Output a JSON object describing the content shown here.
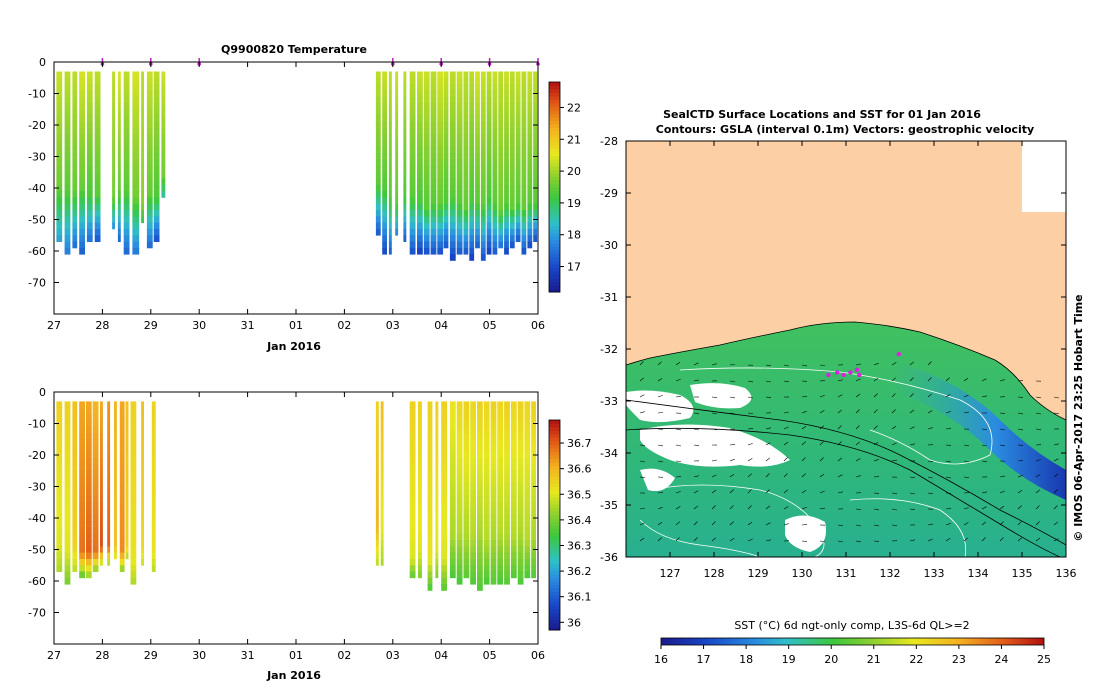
{
  "chart_data": [
    {
      "type": "heatmap",
      "title": "Q9900820  Temperature",
      "xlabel": "Jan 2016",
      "x_tick_labels": [
        "27",
        "28",
        "29",
        "30",
        "31",
        "01",
        "02",
        "03",
        "04",
        "05",
        "06"
      ],
      "x_range_days": [
        0,
        10
      ],
      "y_tick_labels": [
        "0",
        "-10",
        "-20",
        "-30",
        "-40",
        "-50",
        "-60",
        "-70"
      ],
      "ylim": [
        -80,
        0
      ],
      "colorbar_ticks": [
        "17",
        "18",
        "19",
        "20",
        "21",
        "22"
      ],
      "colorbar_range": [
        16.2,
        22.8
      ],
      "profile_markers_day": [
        1,
        2,
        3,
        7,
        8,
        9,
        10
      ],
      "profiles": [
        {
          "x": 0.05,
          "w": 0.12,
          "bottom": -56,
          "upper": 20.3,
          "mid": 19.6,
          "lower": 18.0,
          "thermocline": -38
        },
        {
          "x": 0.22,
          "w": 0.12,
          "bottom": -60,
          "upper": 20.2,
          "mid": 19.4,
          "lower": 17.6,
          "thermocline": -40
        },
        {
          "x": 0.38,
          "w": 0.1,
          "bottom": -58,
          "upper": 20.2,
          "mid": 19.5,
          "lower": 17.4,
          "thermocline": -40
        },
        {
          "x": 0.52,
          "w": 0.12,
          "bottom": -60,
          "upper": 20.4,
          "mid": 19.5,
          "lower": 17.2,
          "thermocline": -39
        },
        {
          "x": 0.68,
          "w": 0.12,
          "bottom": -57,
          "upper": 20.3,
          "mid": 19.3,
          "lower": 17.3,
          "thermocline": -41
        },
        {
          "x": 0.84,
          "w": 0.12,
          "bottom": -56,
          "upper": 20.2,
          "mid": 19.4,
          "lower": 17.1,
          "thermocline": -41
        },
        {
          "x": 1.2,
          "w": 0.06,
          "bottom": -53,
          "upper": 20.2,
          "mid": 19.6,
          "lower": 17.6,
          "thermocline": -42
        },
        {
          "x": 1.32,
          "w": 0.06,
          "bottom": -56,
          "upper": 20.4,
          "mid": 19.5,
          "lower": 17.3,
          "thermocline": -40
        },
        {
          "x": 1.44,
          "w": 0.12,
          "bottom": -61,
          "upper": 20.2,
          "mid": 19.4,
          "lower": 17.2,
          "thermocline": -40
        },
        {
          "x": 1.62,
          "w": 0.14,
          "bottom": -61,
          "upper": 20.4,
          "mid": 19.6,
          "lower": 17.4,
          "thermocline": -42
        },
        {
          "x": 1.8,
          "w": 0.06,
          "bottom": -51,
          "upper": 20.2,
          "mid": 19.8,
          "lower": 18.8,
          "thermocline": -44
        },
        {
          "x": 1.92,
          "w": 0.12,
          "bottom": -59,
          "upper": 20.3,
          "mid": 19.5,
          "lower": 17.2,
          "thermocline": -41
        },
        {
          "x": 2.06,
          "w": 0.12,
          "bottom": -56,
          "upper": 20.2,
          "mid": 19.3,
          "lower": 17.0,
          "thermocline": -42
        },
        {
          "x": 2.22,
          "w": 0.08,
          "bottom": -43,
          "upper": 20.3,
          "mid": 19.6,
          "lower": 18.3,
          "thermocline": -35
        },
        {
          "x": 6.65,
          "w": 0.1,
          "bottom": -55,
          "upper": 20.2,
          "mid": 19.4,
          "lower": 17.0,
          "thermocline": -38
        },
        {
          "x": 6.78,
          "w": 0.1,
          "bottom": -61,
          "upper": 20.3,
          "mid": 19.3,
          "lower": 16.8,
          "thermocline": -40
        },
        {
          "x": 6.92,
          "w": 0.06,
          "bottom": -60,
          "upper": 20.2,
          "mid": 19.4,
          "lower": 17.2,
          "thermocline": -42
        },
        {
          "x": 7.05,
          "w": 0.06,
          "bottom": -55,
          "upper": 20.3,
          "mid": 19.5,
          "lower": 17.4,
          "thermocline": -44
        },
        {
          "x": 7.22,
          "w": 0.06,
          "bottom": -57,
          "upper": 20.2,
          "mid": 19.3,
          "lower": 17.0,
          "thermocline": -42
        },
        {
          "x": 7.35,
          "w": 0.12,
          "bottom": -61,
          "upper": 20.2,
          "mid": 19.4,
          "lower": 16.9,
          "thermocline": -42
        },
        {
          "x": 7.5,
          "w": 0.12,
          "bottom": -60,
          "upper": 20.3,
          "mid": 19.3,
          "lower": 16.8,
          "thermocline": -43
        },
        {
          "x": 7.64,
          "w": 0.12,
          "bottom": -60,
          "upper": 20.3,
          "mid": 19.4,
          "lower": 17.0,
          "thermocline": -45
        },
        {
          "x": 7.78,
          "w": 0.12,
          "bottom": -61,
          "upper": 20.2,
          "mid": 19.4,
          "lower": 16.9,
          "thermocline": -44
        },
        {
          "x": 7.92,
          "w": 0.12,
          "bottom": -60,
          "upper": 20.4,
          "mid": 19.5,
          "lower": 17.0,
          "thermocline": -44
        },
        {
          "x": 8.05,
          "w": 0.1,
          "bottom": -59,
          "upper": 20.3,
          "mid": 19.3,
          "lower": 16.9,
          "thermocline": -43
        },
        {
          "x": 8.18,
          "w": 0.12,
          "bottom": -62,
          "upper": 20.2,
          "mid": 19.4,
          "lower": 16.8,
          "thermocline": -42
        },
        {
          "x": 8.32,
          "w": 0.12,
          "bottom": -61,
          "upper": 20.3,
          "mid": 19.4,
          "lower": 17.0,
          "thermocline": -44
        },
        {
          "x": 8.46,
          "w": 0.1,
          "bottom": -60,
          "upper": 20.2,
          "mid": 19.5,
          "lower": 17.1,
          "thermocline": -45
        },
        {
          "x": 8.58,
          "w": 0.1,
          "bottom": -62,
          "upper": 20.2,
          "mid": 19.3,
          "lower": 16.8,
          "thermocline": -43
        },
        {
          "x": 8.7,
          "w": 0.1,
          "bottom": -59,
          "upper": 20.4,
          "mid": 19.4,
          "lower": 17.0,
          "thermocline": -44
        },
        {
          "x": 8.82,
          "w": 0.1,
          "bottom": -63,
          "upper": 20.3,
          "mid": 19.5,
          "lower": 16.9,
          "thermocline": -44
        },
        {
          "x": 8.94,
          "w": 0.1,
          "bottom": -60,
          "upper": 20.2,
          "mid": 19.3,
          "lower": 16.8,
          "thermocline": -42
        },
        {
          "x": 9.06,
          "w": 0.1,
          "bottom": -61,
          "upper": 20.3,
          "mid": 19.4,
          "lower": 17.0,
          "thermocline": -44
        },
        {
          "x": 9.18,
          "w": 0.1,
          "bottom": -59,
          "upper": 20.2,
          "mid": 19.6,
          "lower": 17.2,
          "thermocline": -46
        },
        {
          "x": 9.3,
          "w": 0.1,
          "bottom": -60,
          "upper": 20.3,
          "mid": 19.4,
          "lower": 16.9,
          "thermocline": -44
        },
        {
          "x": 9.42,
          "w": 0.1,
          "bottom": -58,
          "upper": 20.2,
          "mid": 19.5,
          "lower": 17.0,
          "thermocline": -45
        },
        {
          "x": 9.54,
          "w": 0.1,
          "bottom": -57,
          "upper": 20.3,
          "mid": 19.4,
          "lower": 16.9,
          "thermocline": -44
        },
        {
          "x": 9.66,
          "w": 0.1,
          "bottom": -60,
          "upper": 20.2,
          "mid": 19.5,
          "lower": 17.0,
          "thermocline": -45
        },
        {
          "x": 9.78,
          "w": 0.1,
          "bottom": -58,
          "upper": 20.3,
          "mid": 19.4,
          "lower": 16.9,
          "thermocline": -44
        },
        {
          "x": 9.9,
          "w": 0.08,
          "bottom": -56,
          "upper": 20.2,
          "mid": 19.4,
          "lower": 17.0,
          "thermocline": -44
        }
      ]
    },
    {
      "type": "heatmap",
      "title": "",
      "xlabel": "Jan 2016",
      "x_tick_labels": [
        "27",
        "28",
        "29",
        "30",
        "31",
        "01",
        "02",
        "03",
        "04",
        "05",
        "06"
      ],
      "x_range_days": [
        0,
        10
      ],
      "y_tick_labels": [
        "0",
        "-10",
        "-20",
        "-30",
        "-40",
        "-50",
        "-60",
        "-70"
      ],
      "ylim": [
        -80,
        0
      ],
      "colorbar_ticks": [
        "36",
        "36.1",
        "36.2",
        "36.3",
        "36.4",
        "36.5",
        "36.6",
        "36.7"
      ],
      "colorbar_range": [
        35.97,
        36.79
      ],
      "profiles": [
        {
          "x": 0.05,
          "w": 0.12,
          "bottom": -56,
          "upper": 36.55,
          "mid": 36.5,
          "lower": 36.45,
          "thermocline": -48
        },
        {
          "x": 0.22,
          "w": 0.12,
          "bottom": -60,
          "upper": 36.55,
          "mid": 36.5,
          "lower": 36.4,
          "thermocline": -50
        },
        {
          "x": 0.38,
          "w": 0.1,
          "bottom": -57,
          "upper": 36.58,
          "mid": 36.55,
          "lower": 36.45,
          "thermocline": -48
        },
        {
          "x": 0.52,
          "w": 0.12,
          "bottom": -58,
          "upper": 36.62,
          "mid": 36.68,
          "lower": 36.35,
          "thermocline": -50
        },
        {
          "x": 0.66,
          "w": 0.12,
          "bottom": -59,
          "upper": 36.62,
          "mid": 36.7,
          "lower": 36.38,
          "thermocline": -50
        },
        {
          "x": 0.8,
          "w": 0.12,
          "bottom": -57,
          "upper": 36.6,
          "mid": 36.68,
          "lower": 36.35,
          "thermocline": -50
        },
        {
          "x": 0.95,
          "w": 0.06,
          "bottom": -55,
          "upper": 36.62,
          "mid": 36.72,
          "lower": 36.4,
          "thermocline": -48
        },
        {
          "x": 1.1,
          "w": 0.06,
          "bottom": -55,
          "upper": 36.64,
          "mid": 36.7,
          "lower": 36.38,
          "thermocline": -48
        },
        {
          "x": 1.24,
          "w": 0.06,
          "bottom": -53,
          "upper": 36.6,
          "mid": 36.58,
          "lower": 36.45,
          "thermocline": -48
        },
        {
          "x": 1.36,
          "w": 0.1,
          "bottom": -56,
          "upper": 36.62,
          "mid": 36.65,
          "lower": 36.4,
          "thermocline": -50
        },
        {
          "x": 1.48,
          "w": 0.06,
          "bottom": -53,
          "upper": 36.58,
          "mid": 36.55,
          "lower": 36.42,
          "thermocline": -48
        },
        {
          "x": 1.58,
          "w": 0.12,
          "bottom": -60,
          "upper": 36.55,
          "mid": 36.52,
          "lower": 36.45,
          "thermocline": -52
        },
        {
          "x": 1.8,
          "w": 0.06,
          "bottom": -54,
          "upper": 36.58,
          "mid": 36.54,
          "lower": 36.48,
          "thermocline": -48
        },
        {
          "x": 2.02,
          "w": 0.08,
          "bottom": -57,
          "upper": 36.55,
          "mid": 36.52,
          "lower": 36.45,
          "thermocline": -50
        },
        {
          "x": 6.65,
          "w": 0.06,
          "bottom": -55,
          "upper": 36.55,
          "mid": 36.6,
          "lower": 36.45,
          "thermocline": -42
        },
        {
          "x": 6.75,
          "w": 0.06,
          "bottom": -55,
          "upper": 36.58,
          "mid": 36.5,
          "lower": 36.44,
          "thermocline": -44
        },
        {
          "x": 7.35,
          "w": 0.12,
          "bottom": -59,
          "upper": 36.55,
          "mid": 36.5,
          "lower": 36.35,
          "thermocline": -52
        },
        {
          "x": 7.52,
          "w": 0.08,
          "bottom": -58,
          "upper": 36.55,
          "mid": 36.5,
          "lower": 36.4,
          "thermocline": -50
        },
        {
          "x": 7.72,
          "w": 0.1,
          "bottom": -62,
          "upper": 36.55,
          "mid": 36.52,
          "lower": 36.35,
          "thermocline": -52
        },
        {
          "x": 7.88,
          "w": 0.06,
          "bottom": -58,
          "upper": 36.55,
          "mid": 36.5,
          "lower": 36.4,
          "thermocline": -50
        },
        {
          "x": 8.0,
          "w": 0.12,
          "bottom": -62,
          "upper": 36.55,
          "mid": 36.5,
          "lower": 36.36,
          "thermocline": -52
        },
        {
          "x": 8.18,
          "w": 0.12,
          "bottom": -58,
          "upper": 36.52,
          "mid": 36.45,
          "lower": 36.35,
          "thermocline": -45
        },
        {
          "x": 8.32,
          "w": 0.12,
          "bottom": -60,
          "upper": 36.54,
          "mid": 36.46,
          "lower": 36.35,
          "thermocline": -44
        },
        {
          "x": 8.46,
          "w": 0.12,
          "bottom": -59,
          "upper": 36.55,
          "mid": 36.45,
          "lower": 36.36,
          "thermocline": -46
        },
        {
          "x": 8.6,
          "w": 0.12,
          "bottom": -61,
          "upper": 36.54,
          "mid": 36.46,
          "lower": 36.35,
          "thermocline": -45
        },
        {
          "x": 8.74,
          "w": 0.12,
          "bottom": -62,
          "upper": 36.55,
          "mid": 36.45,
          "lower": 36.36,
          "thermocline": -44
        },
        {
          "x": 8.88,
          "w": 0.12,
          "bottom": -60,
          "upper": 36.54,
          "mid": 36.46,
          "lower": 36.35,
          "thermocline": -46
        },
        {
          "x": 9.02,
          "w": 0.12,
          "bottom": -61,
          "upper": 36.55,
          "mid": 36.45,
          "lower": 36.36,
          "thermocline": -45
        },
        {
          "x": 9.16,
          "w": 0.12,
          "bottom": -60,
          "upper": 36.54,
          "mid": 36.46,
          "lower": 36.35,
          "thermocline": -44
        },
        {
          "x": 9.3,
          "w": 0.12,
          "bottom": -61,
          "upper": 36.55,
          "mid": 36.45,
          "lower": 36.36,
          "thermocline": -46
        },
        {
          "x": 9.44,
          "w": 0.12,
          "bottom": -59,
          "upper": 36.54,
          "mid": 36.46,
          "lower": 36.35,
          "thermocline": -45
        },
        {
          "x": 9.58,
          "w": 0.12,
          "bottom": -60,
          "upper": 36.55,
          "mid": 36.45,
          "lower": 36.36,
          "thermocline": -44
        },
        {
          "x": 9.72,
          "w": 0.12,
          "bottom": -58,
          "upper": 36.54,
          "mid": 36.46,
          "lower": 36.35,
          "thermocline": -46
        },
        {
          "x": 9.86,
          "w": 0.1,
          "bottom": -58,
          "upper": 36.55,
          "mid": 36.45,
          "lower": 36.36,
          "thermocline": -45
        }
      ]
    },
    {
      "type": "heatmap",
      "title_line1": "SealCTD Surface Locations and SST for 01 Jan 2016",
      "title_line2": "Contours: GSLA (interval 0.1m) Vectors: geostrophic velocity",
      "x_tick_labels": [
        "127",
        "128",
        "129",
        "130",
        "131",
        "132",
        "133",
        "134",
        "135",
        "136"
      ],
      "xlim": [
        126,
        136
      ],
      "y_tick_labels": [
        "-28",
        "-29",
        "-30",
        "-31",
        "-32",
        "-33",
        "-34",
        "-35",
        "-36"
      ],
      "ylim": [
        -36,
        -28
      ],
      "colorbar_label": "SST (°C) 6d ngt-only comp, L3S-6d QL>=2",
      "colorbar_ticks": [
        "16",
        "17",
        "18",
        "19",
        "20",
        "21",
        "22",
        "23",
        "24",
        "25"
      ],
      "colorbar_range": [
        16,
        25
      ],
      "side_text": "© IMOS 06-Apr-2017 23:25 Hobart Time",
      "seal_locations": [
        [
          130.6,
          -32.5
        ],
        [
          130.8,
          -32.45
        ],
        [
          130.95,
          -32.5
        ],
        [
          131.1,
          -32.45
        ],
        [
          131.25,
          -32.4
        ],
        [
          131.3,
          -32.5
        ],
        [
          132.2,
          -32.1
        ]
      ],
      "land_color": "#fcd0a4"
    }
  ]
}
